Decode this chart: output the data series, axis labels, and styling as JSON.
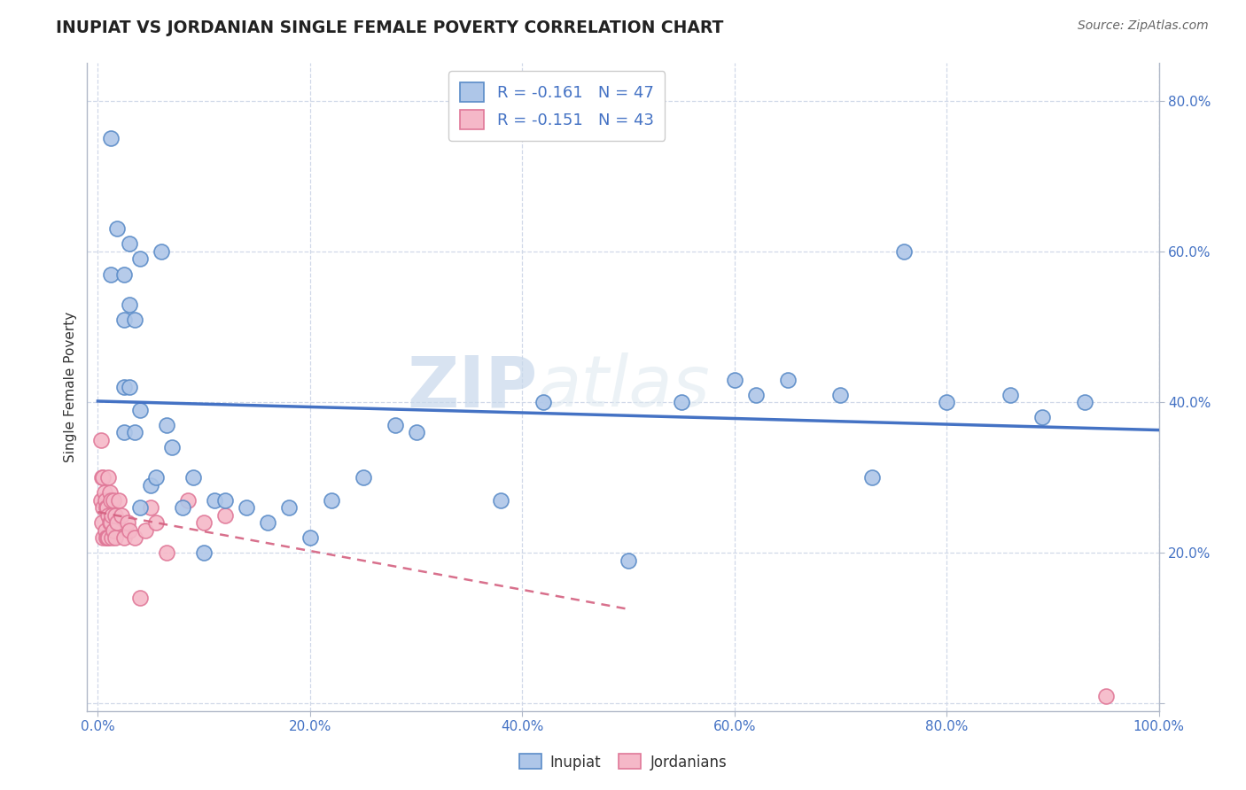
{
  "title": "INUPIAT VS JORDANIAN SINGLE FEMALE POVERTY CORRELATION CHART",
  "source": "Source: ZipAtlas.com",
  "xlabel": "",
  "ylabel": "Single Female Poverty",
  "watermark_zip": "ZIP",
  "watermark_atlas": "atlas",
  "legend_r1": "R = -0.161",
  "legend_n1": "N = 47",
  "legend_r2": "R = -0.151",
  "legend_n2": "N = 43",
  "legend_label1": "Inupiat",
  "legend_label2": "Jordanians",
  "inupiat_x": [
    0.012,
    0.012,
    0.018,
    0.025,
    0.025,
    0.025,
    0.025,
    0.03,
    0.03,
    0.03,
    0.035,
    0.035,
    0.04,
    0.04,
    0.04,
    0.05,
    0.055,
    0.06,
    0.065,
    0.07,
    0.08,
    0.09,
    0.1,
    0.11,
    0.12,
    0.14,
    0.16,
    0.18,
    0.2,
    0.22,
    0.25,
    0.28,
    0.3,
    0.38,
    0.42,
    0.5,
    0.55,
    0.6,
    0.62,
    0.65,
    0.7,
    0.73,
    0.76,
    0.8,
    0.86,
    0.89,
    0.93
  ],
  "inupiat_y": [
    0.75,
    0.57,
    0.63,
    0.57,
    0.51,
    0.42,
    0.36,
    0.61,
    0.53,
    0.42,
    0.51,
    0.36,
    0.59,
    0.39,
    0.26,
    0.29,
    0.3,
    0.6,
    0.37,
    0.34,
    0.26,
    0.3,
    0.2,
    0.27,
    0.27,
    0.26,
    0.24,
    0.26,
    0.22,
    0.27,
    0.3,
    0.37,
    0.36,
    0.27,
    0.4,
    0.19,
    0.4,
    0.43,
    0.41,
    0.43,
    0.41,
    0.3,
    0.6,
    0.4,
    0.41,
    0.38,
    0.4
  ],
  "jordanian_x": [
    0.003,
    0.003,
    0.004,
    0.004,
    0.005,
    0.005,
    0.005,
    0.006,
    0.007,
    0.007,
    0.008,
    0.008,
    0.009,
    0.009,
    0.01,
    0.01,
    0.01,
    0.011,
    0.011,
    0.012,
    0.012,
    0.013,
    0.013,
    0.015,
    0.015,
    0.016,
    0.016,
    0.018,
    0.02,
    0.022,
    0.025,
    0.028,
    0.03,
    0.035,
    0.04,
    0.045,
    0.05,
    0.055,
    0.065,
    0.085,
    0.1,
    0.12,
    0.95
  ],
  "jordanian_y": [
    0.35,
    0.27,
    0.3,
    0.24,
    0.3,
    0.26,
    0.22,
    0.28,
    0.27,
    0.23,
    0.26,
    0.22,
    0.26,
    0.22,
    0.3,
    0.25,
    0.22,
    0.28,
    0.24,
    0.27,
    0.24,
    0.25,
    0.22,
    0.27,
    0.23,
    0.25,
    0.22,
    0.24,
    0.27,
    0.25,
    0.22,
    0.24,
    0.23,
    0.22,
    0.14,
    0.23,
    0.26,
    0.24,
    0.2,
    0.27,
    0.24,
    0.25,
    0.01
  ],
  "inupiat_color": "#aec6e8",
  "inupiat_edge_color": "#5b8cc8",
  "inupiat_line_color": "#4472c4",
  "jordanian_color": "#f5b8c8",
  "jordanian_edge_color": "#e07898",
  "jordanian_line_color": "#d46080",
  "background_color": "#ffffff",
  "plot_area_color": "#ffffff",
  "xlim": [
    -0.01,
    1.0
  ],
  "ylim": [
    -0.01,
    0.85
  ],
  "x_ticks": [
    0.0,
    0.2,
    0.4,
    0.6,
    0.8,
    1.0
  ],
  "x_tick_labels": [
    "0.0%",
    "20.0%",
    "40.0%",
    "60.0%",
    "80.0%",
    "100.0%"
  ],
  "y_ticks": [
    0.0,
    0.2,
    0.4,
    0.6,
    0.8
  ],
  "y_tick_labels": [
    "",
    "20.0%",
    "40.0%",
    "60.0%",
    "80.0%"
  ],
  "grid_color": "#d0d8e8",
  "spine_color": "#b0b8c8"
}
